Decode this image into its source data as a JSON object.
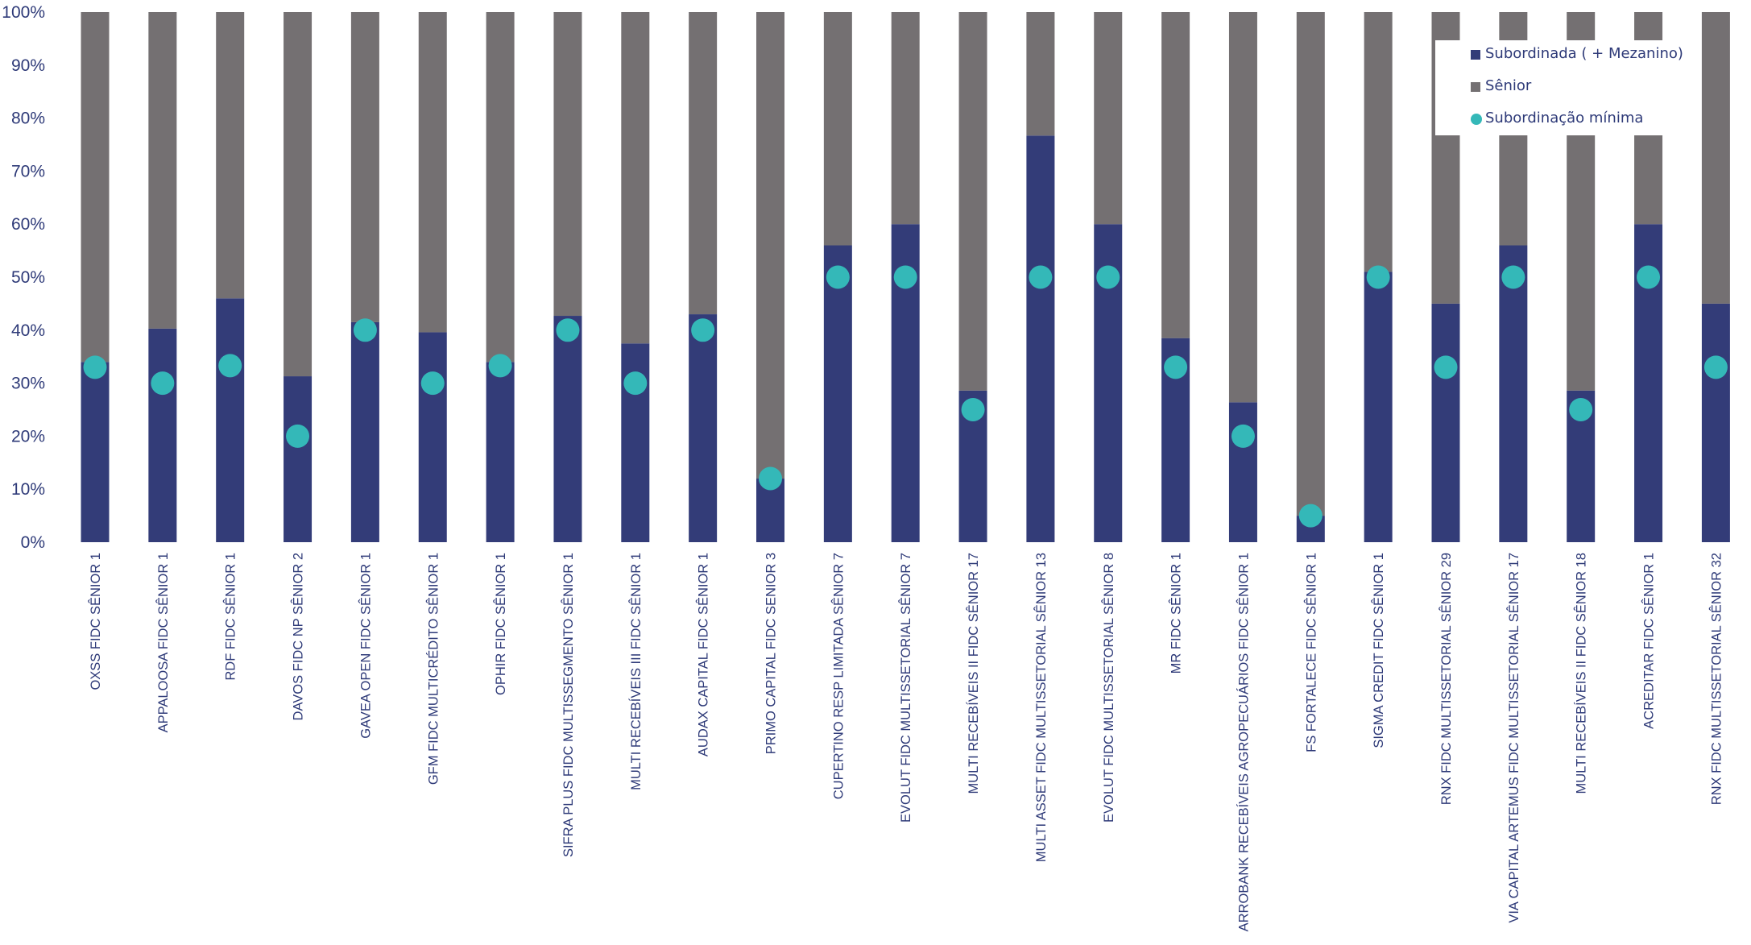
{
  "chart_data": {
    "type": "bar",
    "stacked": true,
    "categories": [
      "OXSS FIDC SÊNIOR 1",
      "APPALOOSA FIDC SÊNIOR 1",
      "RDF FIDC SÊNIOR 1",
      "DAVOS FIDC NP SÊNIOR 2",
      "GAVEA OPEN FIDC SÊNIOR 1",
      "GFM FIDC MULTICRÉDITO SÊNIOR 1",
      "OPHIR FIDC SÊNIOR 1",
      "SIFRA PLUS FIDC MULTISSEGMENTO SÊNIOR 1",
      "MULTI RECEBÍVEIS III FIDC SÊNIOR 1",
      "AUDAX CAPITAL FIDC SÊNIOR 1",
      "PRIMO CAPITAL FIDC SENIOR 3",
      "CUPERTINO RESP LIMITADA SÊNIOR 7",
      "EVOLUT FIDC MULTISSETORIAL SÊNIOR 7",
      "MULTI RECEBÍVEIS II FIDC SÊNIOR 17",
      "MULTI ASSET FIDC MULTISSETORIAL SÊNIOR 13",
      "EVOLUT FIDC MULTISSETORIAL SÊNIOR 8",
      "MR FIDC SÊNIOR 1",
      "ARROBANK RECEBÍVEIS AGROPECUÁRIOS FIDC SÊNIOR 1",
      "FS FORTALECE FIDC SÊNIOR 1",
      "SIGMA CREDIT FIDC SÊNIOR 1",
      "RNX FIDC MULTISSETORIAL SÊNIOR 29",
      "VIA CAPITAL ARTEMUS FIDC MULTISSETORIAL SÊNIOR 17",
      "MULTI RECEBÍVEIS II FIDC SÊNIOR 18",
      "ACREDITAR FIDC SÊNIOR 1",
      "RNX FIDC MULTISSETORIAL SÊNIOR 32"
    ],
    "series": [
      {
        "name": "Subordinada ( + Mezanino)",
        "color": "#333c78",
        "values": [
          34,
          40.3,
          46,
          31.3,
          41.5,
          39.6,
          34,
          42.7,
          37.5,
          43,
          12,
          56,
          60,
          28.6,
          76.7,
          60,
          38.5,
          26.4,
          5,
          51,
          45,
          56,
          28.6,
          60,
          45
        ]
      },
      {
        "name": "Sênior",
        "color": "#747072",
        "values": [
          66,
          59.7,
          54,
          68.7,
          58.5,
          60.4,
          66,
          57.3,
          62.5,
          57,
          88,
          44,
          40,
          71.4,
          23.3,
          40,
          61.5,
          73.6,
          95,
          49,
          55,
          44,
          71.4,
          40,
          55
        ]
      },
      {
        "name": "Subordinação mínima",
        "type": "scatter",
        "color": "#34b8b8",
        "values": [
          33,
          30,
          33.3,
          20,
          40,
          30,
          33.3,
          40,
          30,
          40,
          12,
          50,
          50,
          25,
          50,
          50,
          33,
          20,
          5,
          50,
          33,
          50,
          25,
          50,
          33
        ]
      }
    ],
    "yticks": [
      "0%",
      "10%",
      "20%",
      "30%",
      "40%",
      "50%",
      "60%",
      "70%",
      "80%",
      "90%",
      "100%"
    ],
    "ylim": [
      0,
      100
    ],
    "grid": false,
    "legend_position": "top-right",
    "title": "",
    "xlabel": "",
    "ylabel": ""
  },
  "legend": {
    "items": [
      {
        "label": "Subordinada ( + Mezanino)",
        "icon": "square",
        "color": "#333c78"
      },
      {
        "label": "Sênior",
        "icon": "square",
        "color": "#747072"
      },
      {
        "label": "Subordinação mínima",
        "icon": "circle",
        "color": "#34b8b8"
      }
    ]
  }
}
